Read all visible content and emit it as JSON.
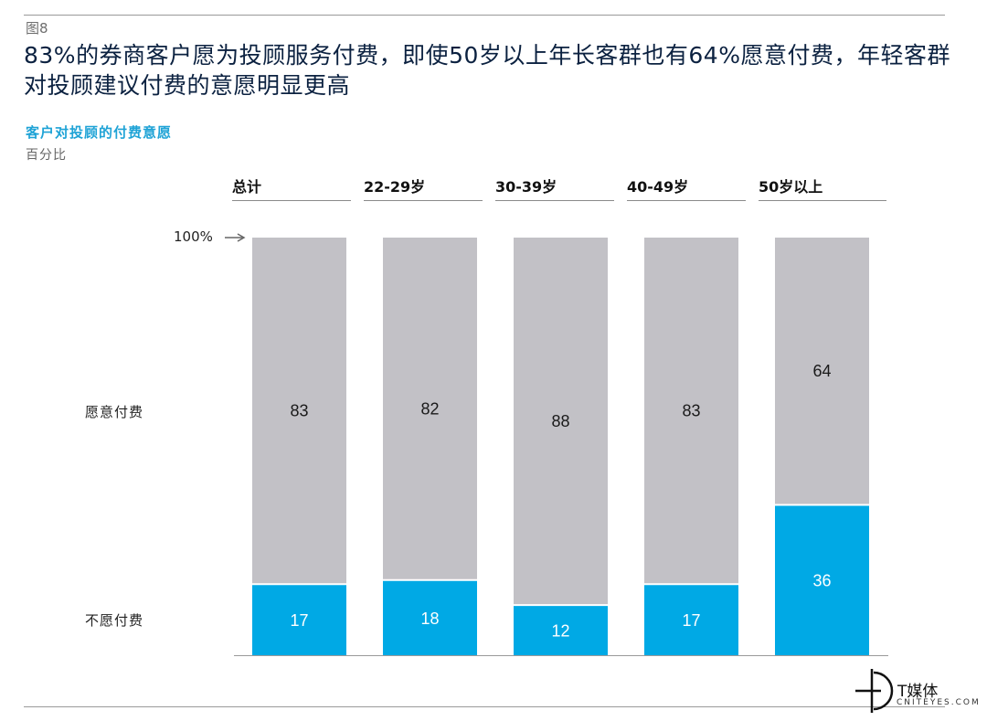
{
  "figure_label": "图8",
  "headline": "83%的券商客户愿为投顾服务付费，即使50岁以上年长客群也有64%愿意付费，年轻客群对投顾建议付费的意愿明显更高",
  "subtitle": "客户对投顾的付费意愿",
  "unit": "百分比",
  "reference_label": "100%",
  "row_labels": {
    "willing": "愿意付费",
    "unwilling": "不愿付费"
  },
  "watermark": {
    "name": "T媒体",
    "domain": "CNITEYES.COM"
  },
  "colors": {
    "willing": "#c2c1c6",
    "unwilling": "#00a9e5",
    "text_dark": "#1a1a1a",
    "text_light": "#ffffff"
  },
  "chart_data": {
    "type": "bar",
    "stacked": true,
    "categories": [
      "总计",
      "22-29岁",
      "30-39岁",
      "40-49岁",
      "50岁以上"
    ],
    "series": [
      {
        "name": "不愿付费",
        "values": [
          17,
          18,
          12,
          17,
          36
        ]
      },
      {
        "name": "愿意付费",
        "values": [
          83,
          82,
          88,
          83,
          64
        ]
      }
    ],
    "ylim": [
      0,
      100
    ],
    "grid": false,
    "legend": "left"
  }
}
